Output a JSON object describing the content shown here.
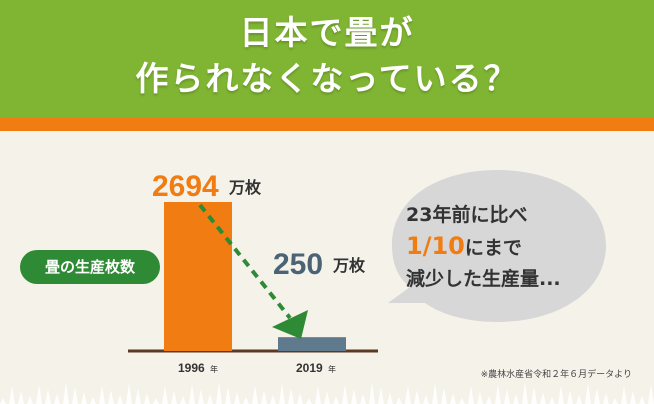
{
  "header": {
    "line1": "日本で畳が",
    "line2": "作られなくなっている？"
  },
  "colors": {
    "header_bg": "#7fb533",
    "stripe": "#f07c12",
    "bar_1996": "#f07c12",
    "bar_2019": "#5f7a8c",
    "pill": "#2e8a34",
    "arrow": "#2e8a34"
  },
  "label_pill": "畳の生産枚数",
  "chart_data": {
    "type": "bar",
    "categories": [
      "1996",
      "2019"
    ],
    "category_unit": "年",
    "values": [
      2694,
      250
    ],
    "value_unit": "万枚",
    "value_labels": [
      "2694",
      "250"
    ],
    "value_label_colors": [
      "#f07c12",
      "#4a6375"
    ],
    "annotation": "decline arrow from 1996 bar to 2019 bar"
  },
  "bubble": {
    "line1_num": "23",
    "line1_text": "年前に比べ",
    "line2_num": "1/10",
    "line2_text": "にまで",
    "line3": "減少した生産量..."
  },
  "source": "※農林水産省令和２年６月データより"
}
